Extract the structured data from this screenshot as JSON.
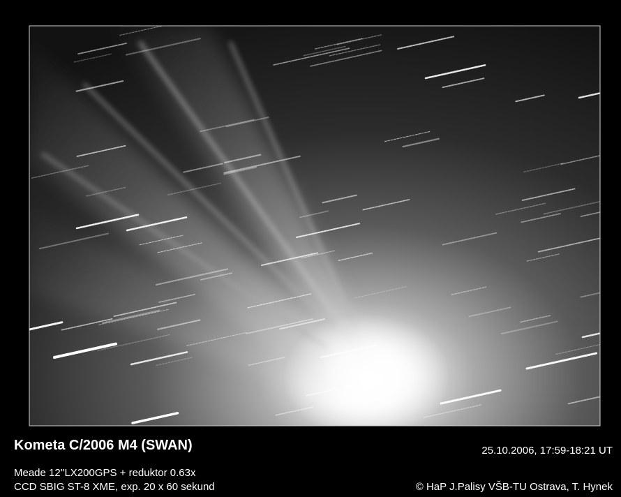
{
  "caption": {
    "title": "Kometa C/2006 M4 (SWAN)",
    "date": "25.10.2006, 17:59-18:21 UT",
    "equipment": [
      "Meade 12''LX200GPS + reduktor 0.63x",
      "CCD SBIG ST-8 XME, exp. 20 x 60 sekund"
    ],
    "credit": "© HaP J.Palisy VŠB-TU Ostrava, T. Hynek"
  }
}
